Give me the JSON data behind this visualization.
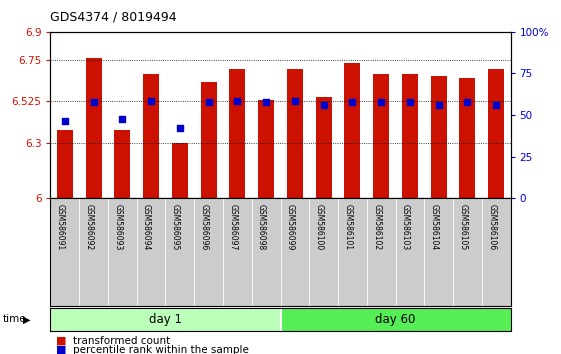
{
  "title": "GDS4374 / 8019494",
  "samples": [
    "GSM586091",
    "GSM586092",
    "GSM586093",
    "GSM586094",
    "GSM586095",
    "GSM586096",
    "GSM586097",
    "GSM586098",
    "GSM586099",
    "GSM586100",
    "GSM586101",
    "GSM586102",
    "GSM586103",
    "GSM586104",
    "GSM586105",
    "GSM586106"
  ],
  "red_bar_heights": [
    6.37,
    6.76,
    6.37,
    6.67,
    6.3,
    6.63,
    6.7,
    6.53,
    6.7,
    6.55,
    6.73,
    6.67,
    6.67,
    6.66,
    6.65,
    6.7
  ],
  "blue_dot_y": [
    6.42,
    6.52,
    6.43,
    6.525,
    6.38,
    6.52,
    6.525,
    6.52,
    6.525,
    6.505,
    6.52,
    6.52,
    6.52,
    6.505,
    6.52,
    6.505
  ],
  "ylim_left": [
    6.0,
    6.9
  ],
  "ylim_right": [
    0,
    100
  ],
  "yticks_left": [
    6.0,
    6.3,
    6.525,
    6.75,
    6.9
  ],
  "ytick_labels_left": [
    "6",
    "6.3",
    "6.525",
    "6.75",
    "6.9"
  ],
  "yticks_right": [
    0,
    25,
    50,
    75,
    100
  ],
  "ytick_labels_right": [
    "0",
    "25",
    "50",
    "75",
    "100%"
  ],
  "bar_color": "#cc1100",
  "dot_color": "#0000cc",
  "bar_width": 0.55,
  "day1_samples": 8,
  "day60_samples": 8,
  "day1_label": "day 1",
  "day60_label": "day 60",
  "time_label": "time",
  "legend_red": "transformed count",
  "legend_blue": "percentile rank within the sample",
  "background_color": "#ffffff",
  "plot_bg": "#ffffff",
  "day1_color": "#bbffbb",
  "day60_color": "#55ee55",
  "tick_label_area_color": "#cccccc"
}
